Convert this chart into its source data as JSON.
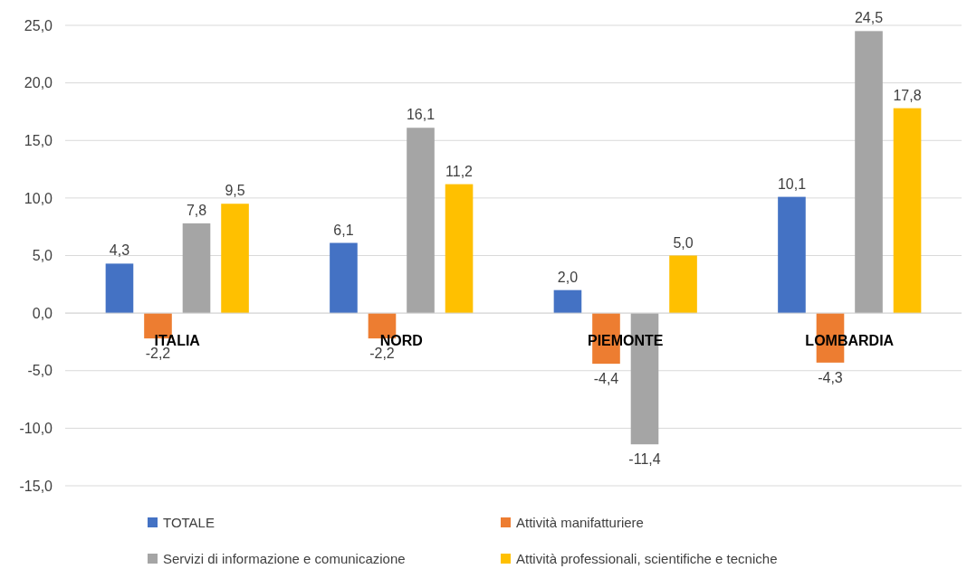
{
  "chart_data": {
    "type": "bar",
    "categories": [
      "ITALIA",
      "NORD",
      "PIEMONTE",
      "LOMBARDIA"
    ],
    "series": [
      {
        "name": "TOTALE",
        "color": "#4472c4",
        "values": [
          4.3,
          6.1,
          2.0,
          10.1
        ],
        "value_labels": [
          "4,3",
          "6,1",
          "2,0",
          "10,1"
        ]
      },
      {
        "name": "Attività manifatturiere",
        "color": "#ed7d31",
        "values": [
          -2.2,
          -2.2,
          -4.4,
          -4.3
        ],
        "value_labels": [
          "-2,2",
          "-2,2",
          "-4,4",
          "-4,3"
        ]
      },
      {
        "name": "Servizi di informazione e comunicazione",
        "color": "#a5a5a5",
        "values": [
          7.8,
          16.1,
          -11.4,
          24.5
        ],
        "value_labels": [
          "7,8",
          "16,1",
          "-11,4",
          "24,5"
        ]
      },
      {
        "name": "Attività professionali, scientifiche e tecniche",
        "color": "#ffc000",
        "values": [
          9.5,
          11.2,
          5.0,
          17.8
        ],
        "value_labels": [
          "9,5",
          "11,2",
          "5,0",
          "17,8"
        ]
      }
    ],
    "ylim": [
      -15,
      25
    ],
    "yticks": [
      {
        "value": -15,
        "label": "-15,0"
      },
      {
        "value": -10,
        "label": "-10,0"
      },
      {
        "value": -5,
        "label": "-5,0"
      },
      {
        "value": 0,
        "label": "0,0"
      },
      {
        "value": 5,
        "label": "5,0"
      },
      {
        "value": 10,
        "label": "10,0"
      },
      {
        "value": 15,
        "label": "15,0"
      },
      {
        "value": 20,
        "label": "20,0"
      },
      {
        "value": 25,
        "label": "25,0"
      }
    ],
    "grid": "y",
    "legend": "bottom"
  }
}
